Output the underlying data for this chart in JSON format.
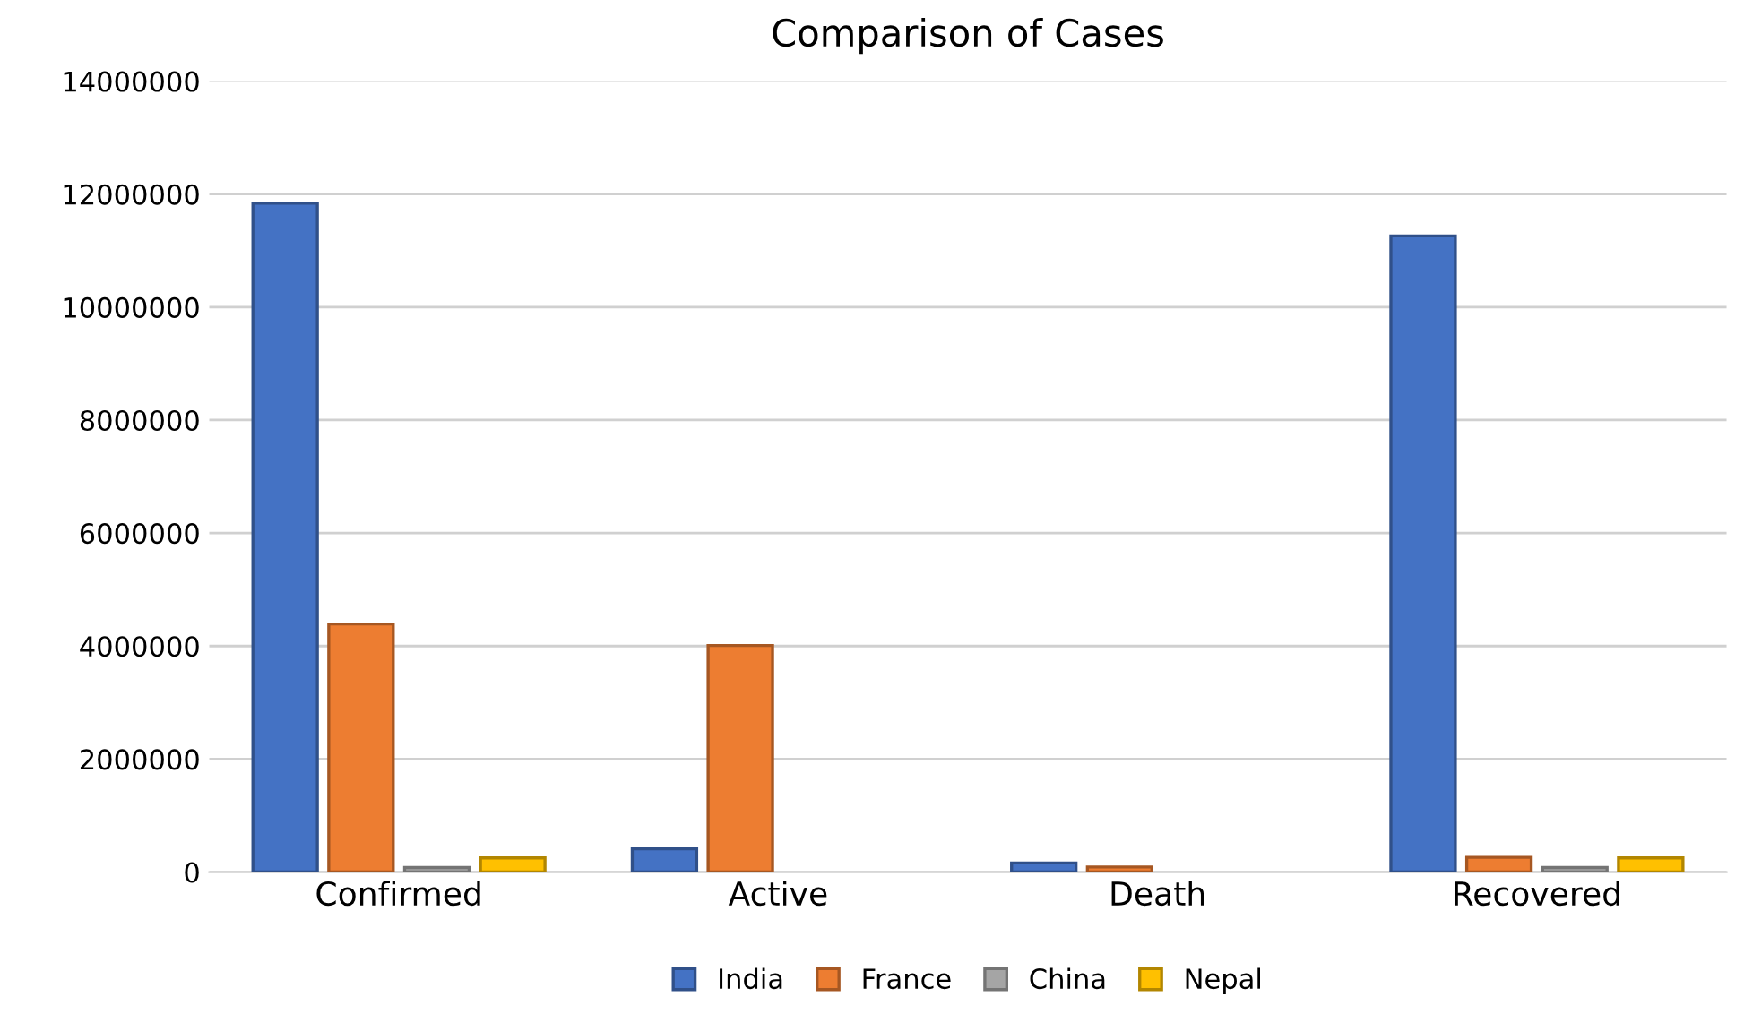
{
  "chart_data": {
    "type": "bar",
    "title": "Comparison of Cases",
    "categories": [
      "Confirmed",
      "Active",
      "Death",
      "Recovered"
    ],
    "series": [
      {
        "name": "India",
        "color": "#4472c4",
        "values": [
          11840000,
          410000,
          160000,
          11260000
        ]
      },
      {
        "name": "France",
        "color": "#ed7d31",
        "values": [
          4390000,
          4010000,
          90000,
          260000
        ]
      },
      {
        "name": "China",
        "color": "#a5a5a5",
        "values": [
          80000,
          null,
          null,
          80000
        ]
      },
      {
        "name": "Nepal",
        "color": "#ffc000",
        "values": [
          250000,
          null,
          null,
          250000
        ]
      }
    ],
    "ylim": [
      0,
      14000000
    ],
    "yticks": [
      0,
      2000000,
      4000000,
      6000000,
      8000000,
      10000000,
      12000000,
      14000000
    ],
    "grid": "y",
    "legend": "bottom"
  }
}
